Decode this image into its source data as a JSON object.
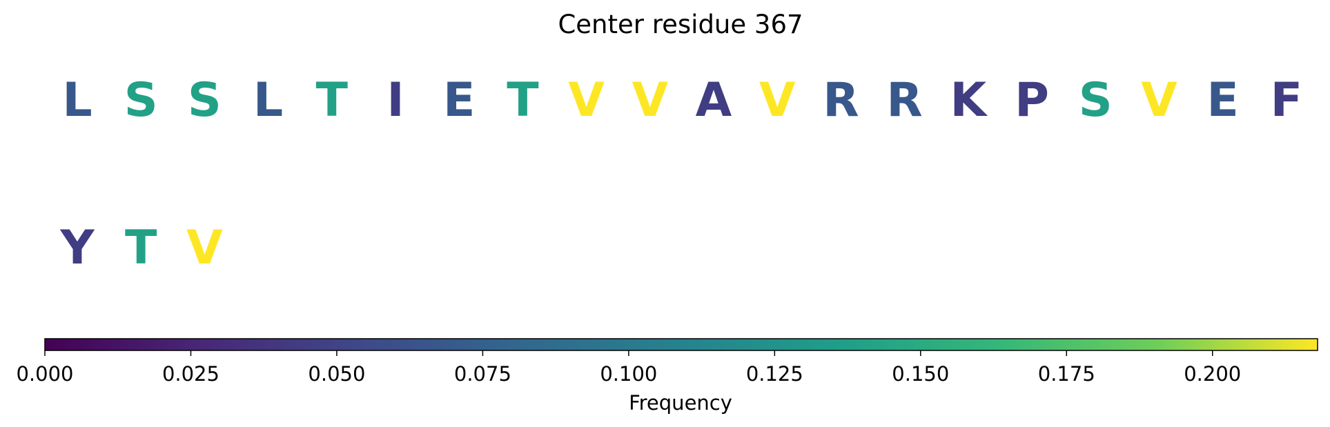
{
  "chart_data": {
    "type": "sequence-logo",
    "title": "Center residue 367",
    "residues": [
      {
        "letter": "L",
        "frequency": 0.068
      },
      {
        "letter": "S",
        "frequency": 0.14
      },
      {
        "letter": "S",
        "frequency": 0.14
      },
      {
        "letter": "L",
        "frequency": 0.068
      },
      {
        "letter": "T",
        "frequency": 0.14
      },
      {
        "letter": "I",
        "frequency": 0.045
      },
      {
        "letter": "E",
        "frequency": 0.068
      },
      {
        "letter": "T",
        "frequency": 0.14
      },
      {
        "letter": "V",
        "frequency": 0.218
      },
      {
        "letter": "V",
        "frequency": 0.218
      },
      {
        "letter": "A",
        "frequency": 0.045
      },
      {
        "letter": "V",
        "frequency": 0.218
      },
      {
        "letter": "R",
        "frequency": 0.068
      },
      {
        "letter": "R",
        "frequency": 0.068
      },
      {
        "letter": "K",
        "frequency": 0.045
      },
      {
        "letter": "P",
        "frequency": 0.045
      },
      {
        "letter": "S",
        "frequency": 0.14
      },
      {
        "letter": "V",
        "frequency": 0.218
      },
      {
        "letter": "E",
        "frequency": 0.068
      },
      {
        "letter": "F",
        "frequency": 0.045
      },
      {
        "letter": "Y",
        "frequency": 0.045
      },
      {
        "letter": "T",
        "frequency": 0.14
      },
      {
        "letter": "V",
        "frequency": 0.218
      }
    ],
    "colorbar": {
      "label": "Frequency",
      "range": [
        0,
        0.218
      ],
      "colormap": "viridis",
      "ticks": [
        0.0,
        0.025,
        0.05,
        0.075,
        0.1,
        0.125,
        0.15,
        0.175,
        0.2
      ],
      "tick_labels": [
        "0.000",
        "0.025",
        "0.050",
        "0.075",
        "0.100",
        "0.125",
        "0.150",
        "0.175",
        "0.200"
      ]
    }
  }
}
